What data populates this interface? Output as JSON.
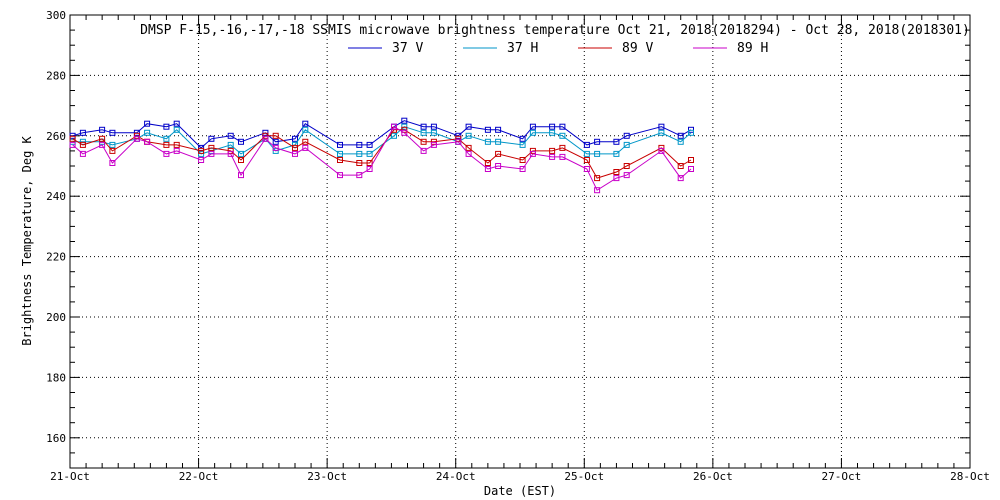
{
  "chart_data": {
    "type": "line",
    "title": "DMSP F-15,-16,-17,-18 SSMIS microwave brightness temperature Oct 21, 2018(2018294) - Oct 28, 2018(2018301)",
    "xlabel": "Date (EST)",
    "ylabel": "Brightness Temperature, Deg K",
    "xlim": [
      0,
      7
    ],
    "ylim": [
      150,
      300
    ],
    "grid": true,
    "legend_position": "top-center",
    "x_tick_labels": [
      "21-Oct",
      "22-Oct",
      "23-Oct",
      "24-Oct",
      "25-Oct",
      "26-Oct",
      "27-Oct",
      "28-Oct"
    ],
    "y_tick_values": [
      160,
      180,
      200,
      220,
      240,
      260,
      280,
      300
    ],
    "y_tick_labels": [
      "160",
      "180",
      "200",
      "220",
      "240",
      "260",
      "280",
      "300"
    ],
    "x_unit": "days since 21-Oct 00:00",
    "series": [
      {
        "name": "37 V",
        "color": "#0000c8",
        "points": [
          [
            0.02,
            260
          ],
          [
            0.1,
            261
          ],
          [
            0.25,
            262
          ],
          [
            0.33,
            261
          ],
          [
            0.52,
            261
          ],
          [
            0.6,
            264
          ],
          [
            0.75,
            263
          ],
          [
            0.83,
            264
          ],
          [
            1.02,
            256
          ],
          [
            1.1,
            259
          ],
          [
            1.25,
            260
          ],
          [
            1.33,
            258
          ],
          [
            1.52,
            261
          ],
          [
            1.6,
            258
          ],
          [
            1.75,
            259
          ],
          [
            1.83,
            264
          ],
          [
            2.1,
            257
          ],
          [
            2.25,
            257
          ],
          [
            2.33,
            257
          ],
          [
            2.52,
            263
          ],
          [
            2.6,
            265
          ],
          [
            2.75,
            263
          ],
          [
            2.83,
            263
          ],
          [
            3.02,
            260
          ],
          [
            3.1,
            263
          ],
          [
            3.25,
            262
          ],
          [
            3.33,
            262
          ],
          [
            3.52,
            259
          ],
          [
            3.6,
            263
          ],
          [
            3.75,
            263
          ],
          [
            3.83,
            263
          ],
          [
            4.02,
            257
          ],
          [
            4.1,
            258
          ],
          [
            4.25,
            258
          ],
          [
            4.33,
            260
          ],
          [
            4.6,
            263
          ],
          [
            4.75,
            260
          ],
          [
            4.83,
            262
          ]
        ]
      },
      {
        "name": "37 H",
        "color": "#0096c8",
        "points": [
          [
            0.02,
            258
          ],
          [
            0.1,
            258
          ],
          [
            0.25,
            258
          ],
          [
            0.33,
            257
          ],
          [
            0.52,
            259
          ],
          [
            0.6,
            261
          ],
          [
            0.75,
            259
          ],
          [
            0.83,
            262
          ],
          [
            1.02,
            254
          ],
          [
            1.1,
            255
          ],
          [
            1.25,
            257
          ],
          [
            1.33,
            254
          ],
          [
            1.52,
            259
          ],
          [
            1.6,
            255
          ],
          [
            1.75,
            257
          ],
          [
            1.83,
            262
          ],
          [
            2.1,
            254
          ],
          [
            2.25,
            254
          ],
          [
            2.33,
            254
          ],
          [
            2.52,
            260
          ],
          [
            2.6,
            263
          ],
          [
            2.75,
            261
          ],
          [
            2.83,
            261
          ],
          [
            3.02,
            258
          ],
          [
            3.1,
            260
          ],
          [
            3.25,
            258
          ],
          [
            3.33,
            258
          ],
          [
            3.52,
            257
          ],
          [
            3.6,
            261
          ],
          [
            3.75,
            261
          ],
          [
            3.83,
            260
          ],
          [
            4.02,
            254
          ],
          [
            4.1,
            254
          ],
          [
            4.25,
            254
          ],
          [
            4.33,
            257
          ],
          [
            4.6,
            261
          ],
          [
            4.75,
            258
          ],
          [
            4.83,
            261
          ]
        ]
      },
      {
        "name": "89 V",
        "color": "#c80000",
        "points": [
          [
            0.02,
            259
          ],
          [
            0.1,
            257
          ],
          [
            0.25,
            259
          ],
          [
            0.33,
            255
          ],
          [
            0.52,
            260
          ],
          [
            0.6,
            258
          ],
          [
            0.75,
            257
          ],
          [
            0.83,
            257
          ],
          [
            1.02,
            255
          ],
          [
            1.1,
            256
          ],
          [
            1.25,
            255
          ],
          [
            1.33,
            252
          ],
          [
            1.52,
            260
          ],
          [
            1.6,
            260
          ],
          [
            1.75,
            256
          ],
          [
            1.83,
            258
          ],
          [
            2.1,
            252
          ],
          [
            2.25,
            251
          ],
          [
            2.33,
            251
          ],
          [
            2.52,
            262
          ],
          [
            2.6,
            262
          ],
          [
            2.75,
            258
          ],
          [
            2.83,
            258
          ],
          [
            3.02,
            259
          ],
          [
            3.1,
            256
          ],
          [
            3.25,
            251
          ],
          [
            3.33,
            254
          ],
          [
            3.52,
            252
          ],
          [
            3.6,
            255
          ],
          [
            3.75,
            255
          ],
          [
            3.83,
            256
          ],
          [
            4.02,
            252
          ],
          [
            4.1,
            246
          ],
          [
            4.25,
            248
          ],
          [
            4.33,
            250
          ],
          [
            4.6,
            256
          ],
          [
            4.75,
            250
          ],
          [
            4.83,
            252
          ]
        ]
      },
      {
        "name": "89 H",
        "color": "#c800c8",
        "points": [
          [
            0.02,
            257
          ],
          [
            0.1,
            254
          ],
          [
            0.25,
            257
          ],
          [
            0.33,
            251
          ],
          [
            0.52,
            259
          ],
          [
            0.6,
            258
          ],
          [
            0.75,
            254
          ],
          [
            0.83,
            255
          ],
          [
            1.02,
            252
          ],
          [
            1.1,
            254
          ],
          [
            1.25,
            254
          ],
          [
            1.33,
            247
          ],
          [
            1.52,
            259
          ],
          [
            1.6,
            256
          ],
          [
            1.75,
            254
          ],
          [
            1.83,
            256
          ],
          [
            2.1,
            247
          ],
          [
            2.25,
            247
          ],
          [
            2.33,
            249
          ],
          [
            2.52,
            263
          ],
          [
            2.6,
            261
          ],
          [
            2.75,
            255
          ],
          [
            2.83,
            257
          ],
          [
            3.02,
            258
          ],
          [
            3.1,
            254
          ],
          [
            3.25,
            249
          ],
          [
            3.33,
            250
          ],
          [
            3.52,
            249
          ],
          [
            3.6,
            254
          ],
          [
            3.75,
            253
          ],
          [
            3.83,
            253
          ],
          [
            4.02,
            249
          ],
          [
            4.1,
            242
          ],
          [
            4.25,
            246
          ],
          [
            4.33,
            247
          ],
          [
            4.6,
            255
          ],
          [
            4.75,
            246
          ],
          [
            4.83,
            249
          ]
        ]
      }
    ]
  }
}
